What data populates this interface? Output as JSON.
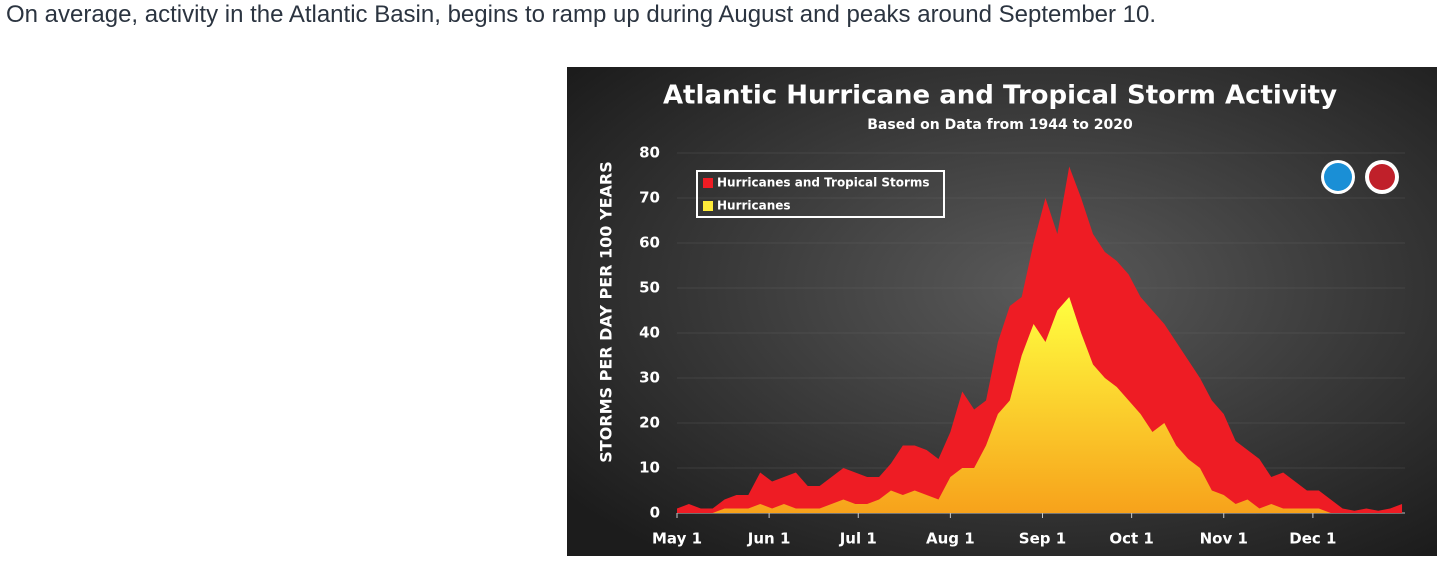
{
  "page": {
    "text": "On average, activity in the Atlantic Basin, begins to ramp up during August and peaks around September 10."
  },
  "chart_data": {
    "type": "area",
    "title": "Atlantic Hurricane and Tropical Storm Activity",
    "subtitle": "Based on Data from 1944 to 2020",
    "y_label": "STORMS PER DAY PER 100 YEARS",
    "x": [
      0,
      4,
      8,
      12,
      16,
      20,
      24,
      28,
      32,
      36,
      40,
      44,
      48,
      52,
      56,
      60,
      64,
      68,
      72,
      76,
      80,
      84,
      88,
      92,
      96,
      100,
      104,
      108,
      112,
      116,
      120,
      124,
      128,
      132,
      136,
      140,
      144,
      148,
      152,
      156,
      160,
      164,
      168,
      172,
      176,
      180,
      184,
      188,
      192,
      196,
      200,
      204,
      208,
      212,
      216,
      220,
      224,
      228,
      232,
      236,
      240,
      244
    ],
    "series": [
      {
        "name": "Hurricanes and Tropical Storms",
        "color": "#ee1c24",
        "values": [
          1,
          2,
          1,
          1,
          3,
          4,
          4,
          9,
          7,
          8,
          9,
          6,
          6,
          8,
          10,
          9,
          8,
          8,
          11,
          15,
          15,
          14,
          12,
          18,
          27,
          23,
          25,
          38,
          46,
          48,
          60,
          70,
          62,
          77,
          70,
          62,
          58,
          56,
          53,
          48,
          45,
          42,
          38,
          34,
          30,
          25,
          22,
          16,
          14,
          12,
          8,
          9,
          7,
          5,
          5,
          3,
          1,
          0.5,
          1,
          0.5,
          1,
          2
        ]
      },
      {
        "name": "Hurricanes",
        "color": "#ffec3a",
        "values": [
          0,
          0,
          0,
          0,
          1,
          1,
          1,
          2,
          1,
          2,
          1,
          1,
          1,
          2,
          3,
          2,
          2,
          3,
          5,
          4,
          5,
          4,
          3,
          8,
          10,
          10,
          15,
          22,
          25,
          35,
          42,
          38,
          45,
          48,
          40,
          33,
          30,
          28,
          25,
          22,
          18,
          20,
          15,
          12,
          10,
          5,
          4,
          2,
          3,
          1,
          2,
          1,
          1,
          1,
          1,
          0,
          0,
          0,
          0,
          0,
          0,
          0
        ]
      }
    ],
    "xlim": [
      0,
      245
    ],
    "xticks": [
      {
        "value": 0,
        "label": "May 1"
      },
      {
        "value": 31,
        "label": "Jun 1"
      },
      {
        "value": 61,
        "label": "Jul 1"
      },
      {
        "value": 92,
        "label": "Aug 1"
      },
      {
        "value": 123,
        "label": "Sep 1"
      },
      {
        "value": 153,
        "label": "Oct 1"
      },
      {
        "value": 184,
        "label": "Nov 1"
      },
      {
        "value": 214,
        "label": "Dec 1"
      }
    ],
    "ylim": [
      0,
      80
    ],
    "yticks": [
      0,
      10,
      20,
      30,
      40,
      50,
      60,
      70,
      80
    ],
    "grid": true,
    "legend": "upper left"
  }
}
